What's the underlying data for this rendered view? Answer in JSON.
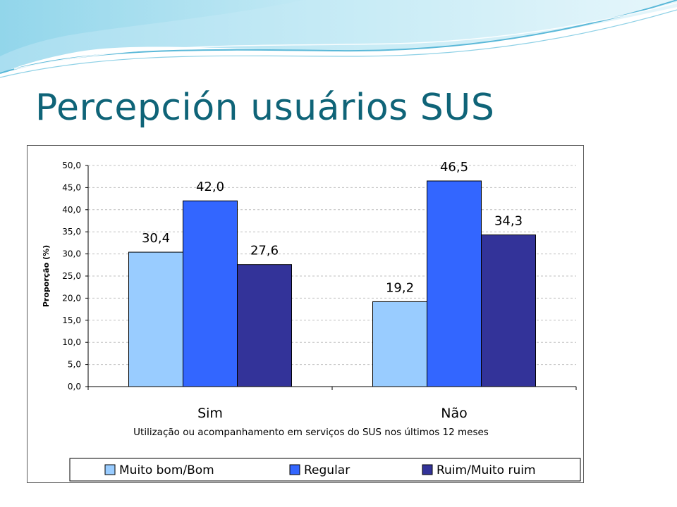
{
  "slide": {
    "title": "Percepción usuários SUS"
  },
  "chart_data": {
    "type": "bar",
    "categories": [
      "Sim",
      "Não"
    ],
    "series": [
      {
        "name": "Muito bom/Bom",
        "values": [
          30.4,
          19.2
        ],
        "labels": [
          "30,4",
          "19,2"
        ],
        "color": "#99ccff"
      },
      {
        "name": "Regular",
        "values": [
          42.0,
          46.5
        ],
        "labels": [
          "42,0",
          "46,5"
        ],
        "color": "#3366ff"
      },
      {
        "name": "Ruim/Muito ruim",
        "values": [
          27.6,
          34.3
        ],
        "labels": [
          "27,6",
          "34,3"
        ],
        "color": "#333399"
      }
    ],
    "ylabel": "Proporção (%)",
    "xlabel": "Utilização ou acompanhamento em serviços do SUS nos últimos 12 meses",
    "ylim": [
      0,
      50
    ],
    "yticks": [
      {
        "value": 0,
        "label": "0,0"
      },
      {
        "value": 5,
        "label": "5,0"
      },
      {
        "value": 10,
        "label": "10,0"
      },
      {
        "value": 15,
        "label": "15,0"
      },
      {
        "value": 20,
        "label": "20,0"
      },
      {
        "value": 25,
        "label": "25,0"
      },
      {
        "value": 30,
        "label": "30,0"
      },
      {
        "value": 35,
        "label": "35,0"
      },
      {
        "value": 40,
        "label": "40,0"
      },
      {
        "value": 45,
        "label": "45,0"
      },
      {
        "value": 50,
        "label": "50,0"
      }
    ],
    "grid": "horizontal-dashed",
    "legend_position": "bottom",
    "bar_outline_color": "#000000",
    "grid_color": "#bfbfbf"
  }
}
